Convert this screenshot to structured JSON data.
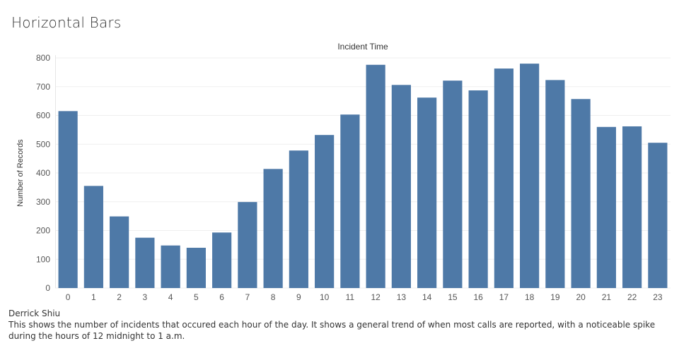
{
  "dashboard": {
    "title": "Horizontal Bars",
    "author": "Derrick Shiu",
    "description": "This shows the number of incidents that occured each hour of the day. It shows a general trend of when most calls are reported, with a noticeable spike during the hours of 12 midnight to 1 a.m."
  },
  "chart_data": {
    "type": "bar",
    "title": "Incident Time",
    "xlabel": "",
    "ylabel": "Number of Records",
    "categories": [
      "0",
      "1",
      "2",
      "3",
      "4",
      "5",
      "6",
      "7",
      "8",
      "9",
      "10",
      "11",
      "12",
      "13",
      "14",
      "15",
      "16",
      "17",
      "18",
      "19",
      "20",
      "21",
      "22",
      "23"
    ],
    "values": [
      615,
      355,
      249,
      175,
      148,
      140,
      193,
      299,
      414,
      478,
      532,
      603,
      776,
      706,
      662,
      721,
      687,
      763,
      780,
      723,
      657,
      560,
      562,
      505
    ],
    "yticks": [
      0,
      100,
      200,
      300,
      400,
      500,
      600,
      700,
      800
    ],
    "ylim": [
      0,
      800
    ],
    "grid": true,
    "legend": "none",
    "bar_color": "#4e79a7"
  }
}
